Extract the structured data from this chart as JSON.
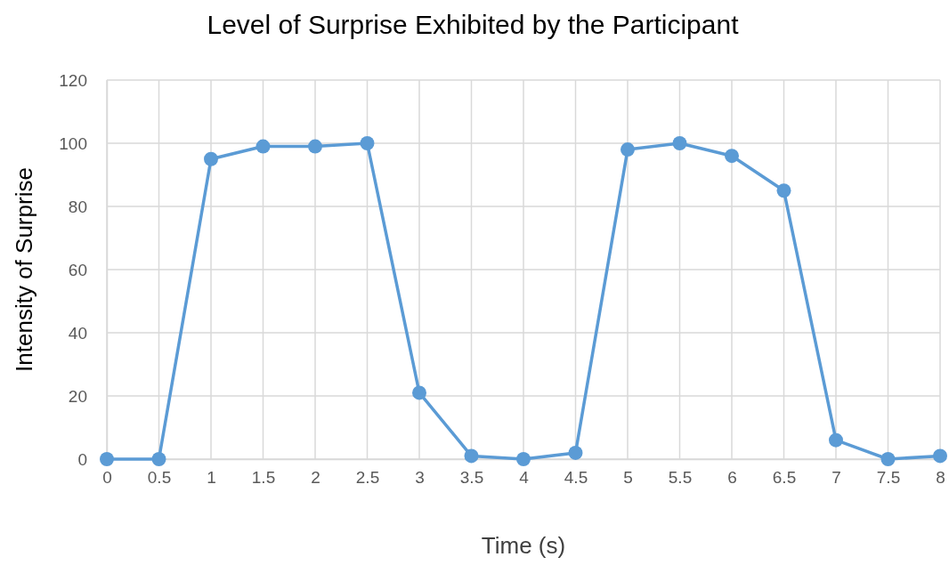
{
  "chart_data": {
    "type": "line",
    "title": "Level of Surprise Exhibited by the Participant",
    "xlabel": "Time (s)",
    "ylabel": "Intensity of Surprise",
    "x": [
      0,
      0.5,
      1,
      1.5,
      2,
      2.5,
      3,
      3.5,
      4,
      4.5,
      5,
      5.5,
      6,
      6.5,
      7,
      7.5,
      8
    ],
    "series": [
      {
        "color": "#5b9bd5",
        "values": [
          0,
          0,
          95,
          99,
          99,
          100,
          21,
          1,
          0,
          2,
          98,
          100,
          96,
          85,
          6,
          0,
          1
        ]
      }
    ],
    "xlim": [
      0,
      8
    ],
    "xticks": [
      0,
      0.5,
      1,
      1.5,
      2,
      2.5,
      3,
      3.5,
      4,
      4.5,
      5,
      5.5,
      6,
      6.5,
      7,
      7.5,
      8
    ],
    "ylim": [
      0,
      120
    ],
    "yticks": [
      0,
      20,
      40,
      60,
      80,
      100,
      120
    ],
    "grid": true,
    "marker": "circle",
    "line_style": "solid"
  }
}
